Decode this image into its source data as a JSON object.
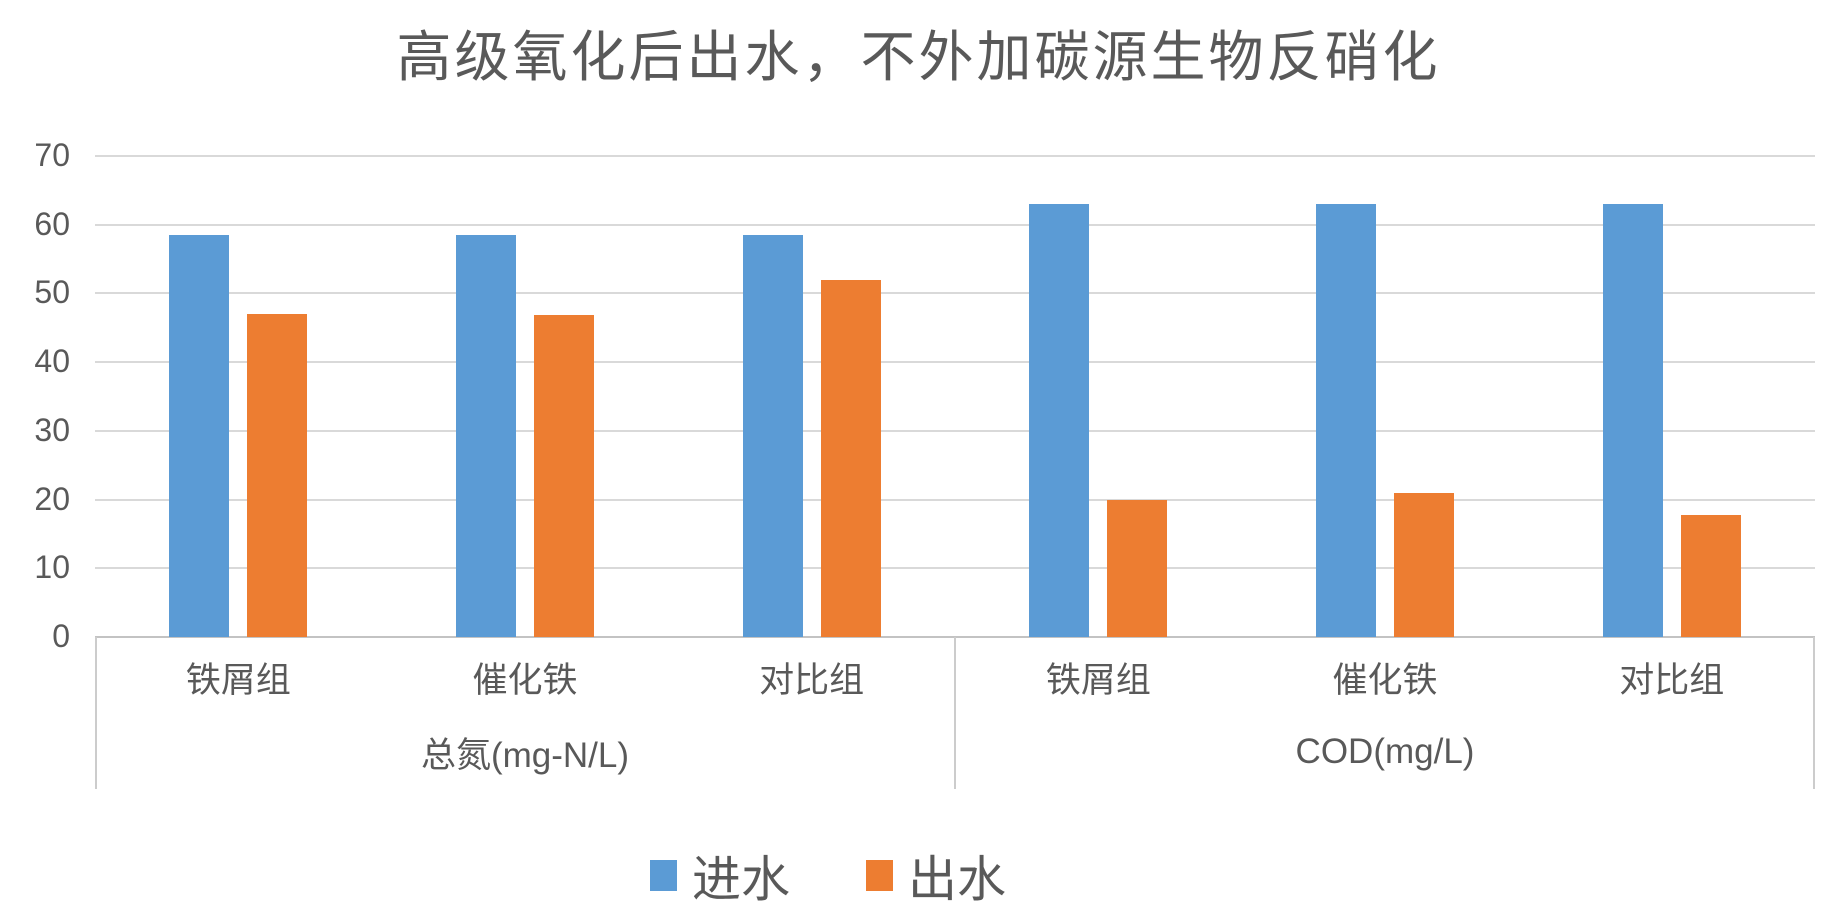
{
  "chart_data": {
    "type": "bar",
    "title": "高级氧化后出水，不外加碳源生物反硝化",
    "ylim": [
      0,
      70
    ],
    "y_ticks": [
      0,
      10,
      20,
      30,
      40,
      50,
      60,
      70
    ],
    "grid": true,
    "legend_position": "bottom",
    "groups": [
      {
        "label": "总氮(mg-N/L)",
        "categories": [
          "铁屑组",
          "催化铁",
          "对比组"
        ],
        "series": [
          {
            "name": "进水",
            "values": [
              58.5,
              58.5,
              58.5
            ]
          },
          {
            "name": "出水",
            "values": [
              47,
              46.8,
              52
            ]
          }
        ]
      },
      {
        "label": "COD(mg/L)",
        "categories": [
          "铁屑组",
          "催化铁",
          "对比组"
        ],
        "series": [
          {
            "name": "进水",
            "values": [
              63,
              63,
              63
            ]
          },
          {
            "name": "出水",
            "values": [
              20,
              21,
              17.8
            ]
          }
        ]
      }
    ],
    "legend": [
      {
        "label": "进水",
        "color": "#5B9BD5"
      },
      {
        "label": "出水",
        "color": "#ED7D31"
      }
    ],
    "colors": {
      "influent": "#5B9BD5",
      "effluent": "#ED7D31",
      "gridline": "#D9D9D9",
      "axis_text": "#595959"
    }
  }
}
